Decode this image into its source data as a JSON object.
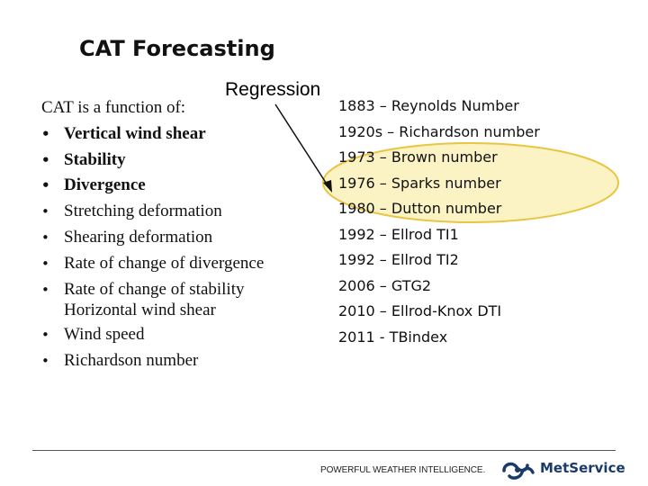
{
  "title": "CAT Forecasting",
  "regression_label": "Regression",
  "left": {
    "intro": "CAT  is a function of:",
    "items": [
      {
        "text": "Vertical wind shear"
      },
      {
        "text": "Stability"
      },
      {
        "text": "Divergence"
      },
      {
        "text": "Stretching deformation"
      },
      {
        "text": "Shearing deformation"
      },
      {
        "text": "Rate of change of divergence"
      },
      {
        "text": "Rate of change of stability"
      }
    ],
    "sub_item": "Horizontal wind shear",
    "items_after": [
      {
        "text": "Wind speed"
      },
      {
        "text": "Richardson number"
      }
    ]
  },
  "timeline": [
    "1883 – Reynolds Number",
    "1920s – Richardson number",
    "1973 – Brown number",
    "1976 – Sparks number",
    "1980 – Dutton number",
    "1992 – Ellrod TI1",
    "1992 – Ellrod TI2",
    "2006 – GTG2",
    "2010 – Ellrod-Knox DTI",
    "2011 - TBindex"
  ],
  "footer": {
    "tagline": "POWERFUL WEATHER INTELLIGENCE.",
    "brand": "MetService"
  },
  "colors": {
    "highlight_fill": "#fbf3c4",
    "highlight_stroke": "#e8c542",
    "brand": "#1a3a6b"
  }
}
